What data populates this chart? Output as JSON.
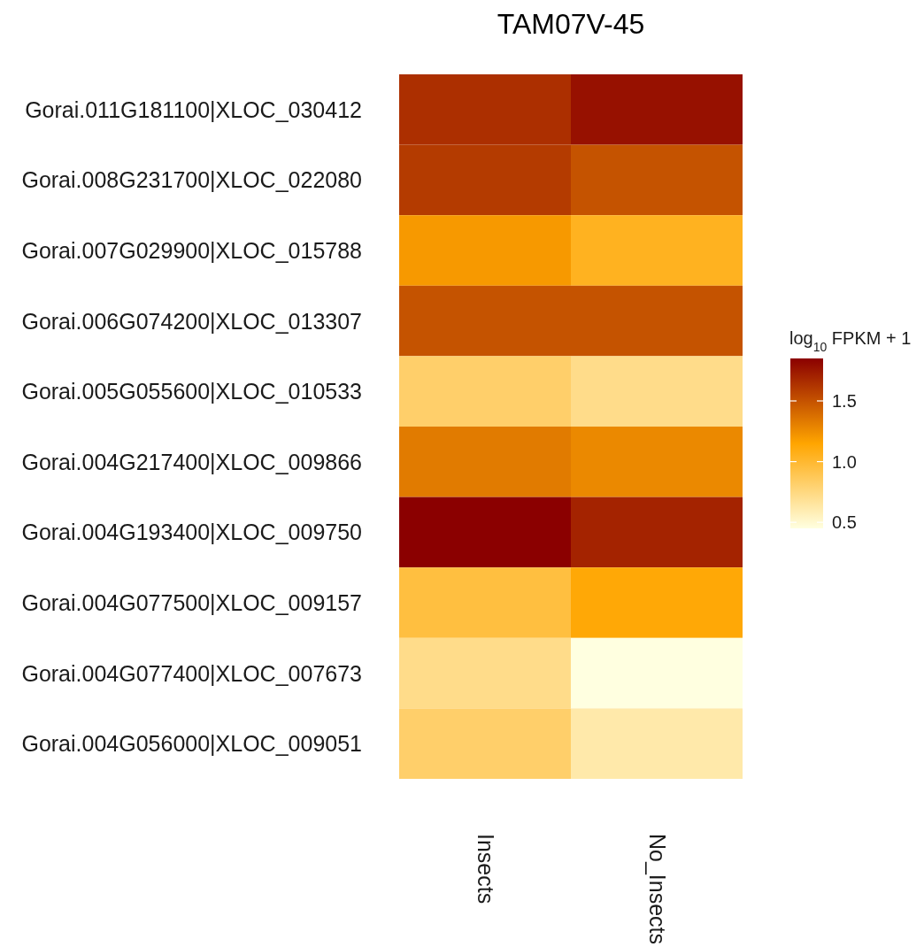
{
  "chart_data": {
    "type": "heatmap",
    "title": "TAM07V-45",
    "clabel": "log$_{10}$ FPKM + 1",
    "categories": [
      "Insects",
      "No_Insects"
    ],
    "y_categories": [
      "Gorai.011G181100|XLOC_030412",
      "Gorai.008G231700|XLOC_022080",
      "Gorai.007G029900|XLOC_015788",
      "Gorai.006G074200|XLOC_013307",
      "Gorai.005G055600|XLOC_010533",
      "Gorai.004G217400|XLOC_009866",
      "Gorai.004G193400|XLOC_009750",
      "Gorai.004G077500|XLOC_009157",
      "Gorai.004G077400|XLOC_007673",
      "Gorai.004G056000|XLOC_009051"
    ],
    "cells": [
      [
        1.65,
        1.78
      ],
      [
        1.6,
        1.5
      ],
      [
        1.2,
        1.05
      ],
      [
        1.5,
        1.5
      ],
      [
        0.82,
        0.72
      ],
      [
        1.33,
        1.27
      ],
      [
        1.85,
        1.7
      ],
      [
        0.95,
        1.13
      ],
      [
        0.72,
        0.45
      ],
      [
        0.82,
        0.62
      ]
    ],
    "clim": [
      0.45,
      1.85
    ],
    "cticks": [
      0.5,
      {
        "value": 1,
        "label": "1.0"
      },
      1.5
    ],
    "colors": [
      "#ffffe0",
      "#ffa500",
      "#8b0000"
    ]
  }
}
